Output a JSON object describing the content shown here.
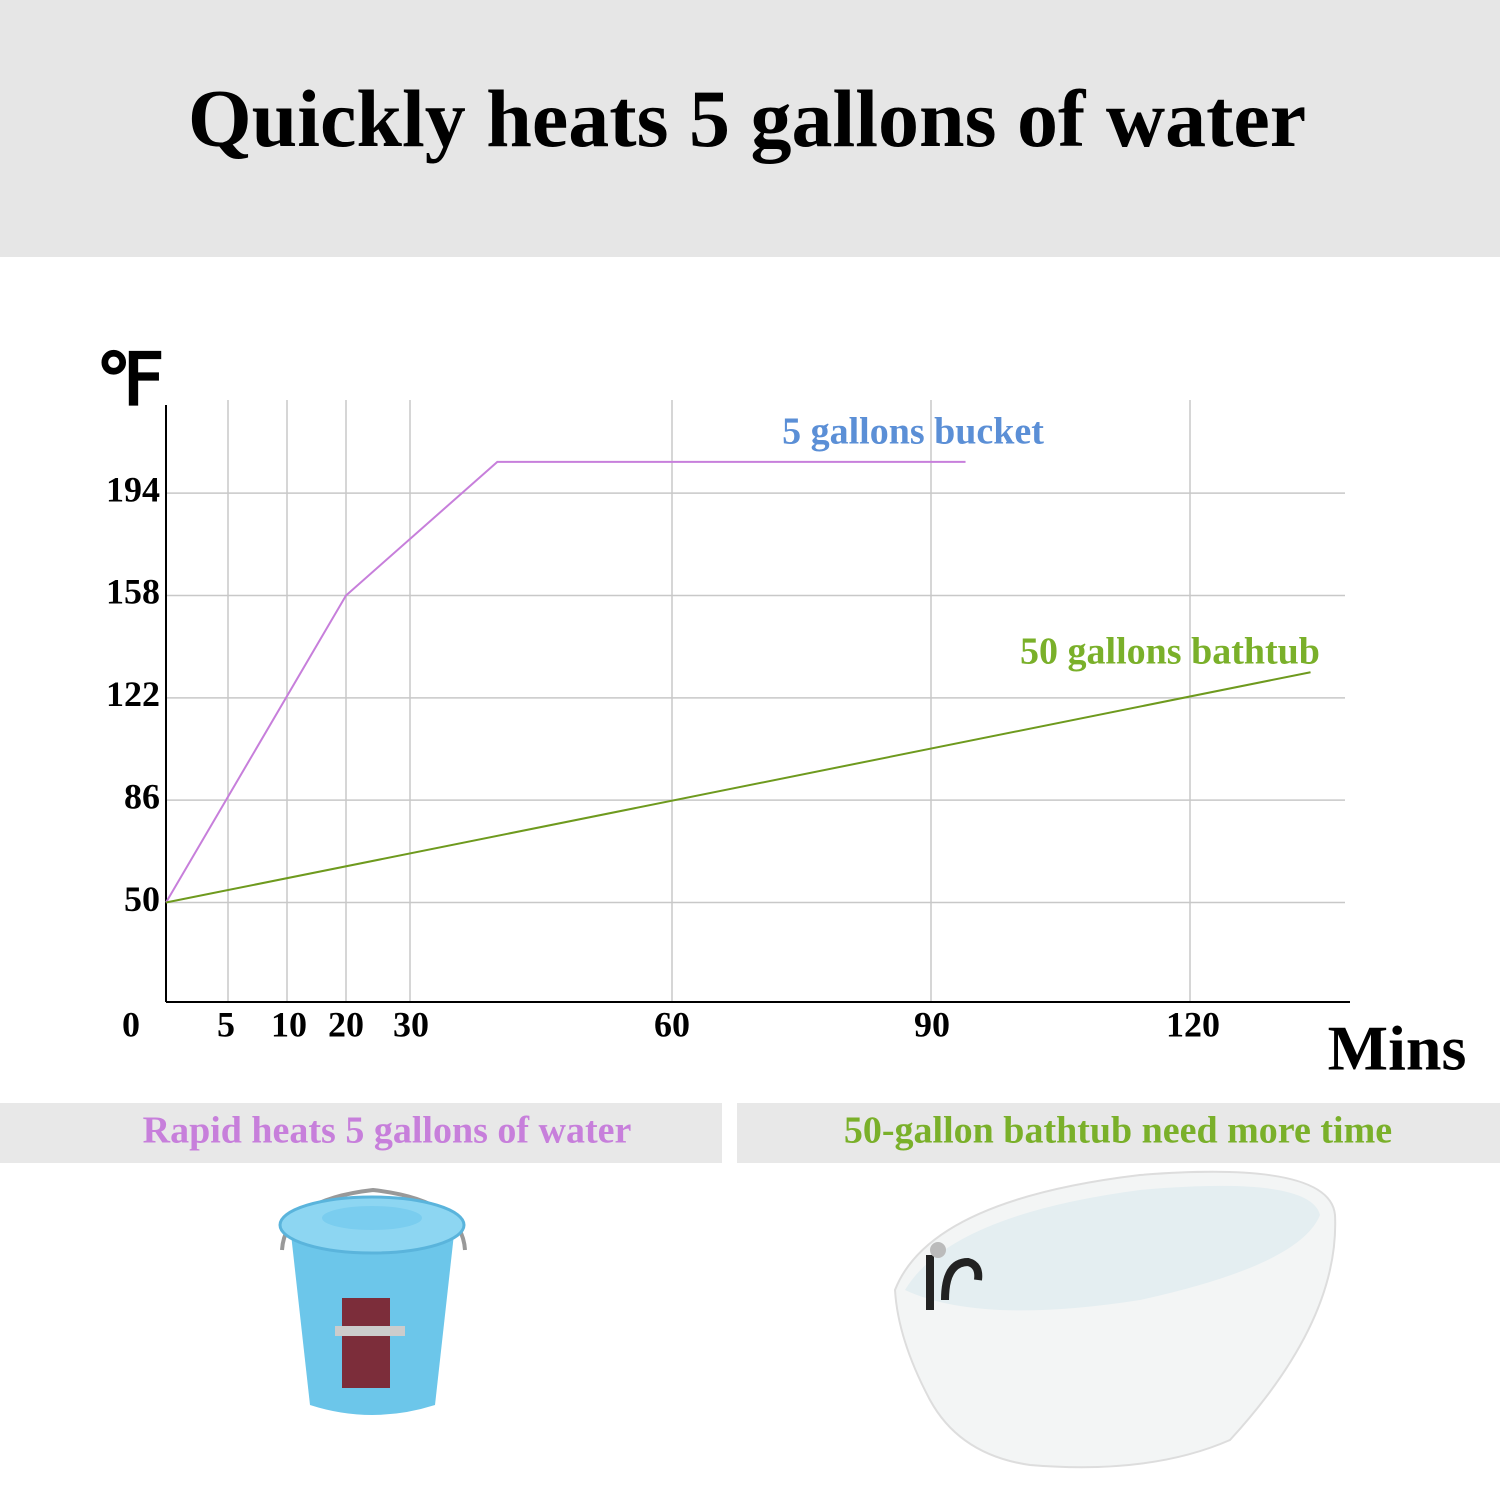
{
  "header": {
    "title": "Quickly heats 5 gallons of water"
  },
  "chart_data": {
    "type": "line",
    "y_label": "℉",
    "x_label": "Mins",
    "xlim": [
      0,
      138
    ],
    "xticks": [
      0,
      5,
      10,
      20,
      30,
      60,
      90,
      120
    ],
    "ylim": [
      15,
      225
    ],
    "yticks": [
      50,
      86,
      122,
      158,
      194
    ],
    "grid": true,
    "series": [
      {
        "name": "5 gallons bucket",
        "color": "#c77fdb",
        "label_color": "#5b8fd6",
        "x": [
          0,
          20,
          40,
          94
        ],
        "values": [
          50,
          158,
          205,
          205
        ]
      },
      {
        "name": "50 gallons bathtub",
        "color": "#6e9a1e",
        "label_color": "#7ab02a",
        "x": [
          0,
          134
        ],
        "values": [
          50,
          131
        ]
      }
    ]
  },
  "captions": [
    {
      "text": "Rapid heats 5 gallons of water",
      "color": "#c77fdb"
    },
    {
      "text": "50-gallon bathtub need more time",
      "color": "#7ab02a"
    }
  ]
}
